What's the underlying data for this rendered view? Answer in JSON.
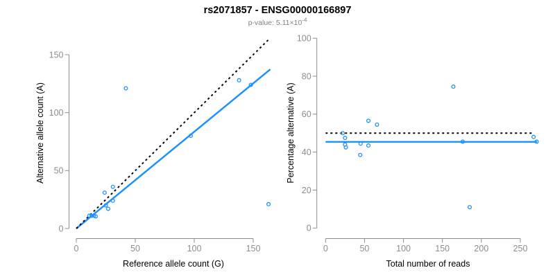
{
  "header": {
    "title": "rs2071857 - ENSG00000166897",
    "subtitle_prefix": "p-value: 5.11×10",
    "subtitle_exponent": "-4"
  },
  "colors": {
    "point": "#1E90FF",
    "fit_line": "#1E90FF",
    "reference_line": "#000000",
    "axis": "#8c8c8c",
    "tick_label": "#8c8c8c",
    "title": "#000000",
    "subtitle": "#7f7f7f"
  },
  "chart_data": [
    {
      "type": "scatter",
      "xlabel": "Reference allele count (G)",
      "ylabel": "Alternative allele count (A)",
      "xticks": [
        0,
        50,
        100,
        150
      ],
      "yticks": [
        0,
        50,
        100,
        150
      ],
      "xlim": [
        0,
        165
      ],
      "ylim": [
        0,
        165
      ],
      "points": [
        [
          11,
          11
        ],
        [
          13,
          11
        ],
        [
          15,
          11
        ],
        [
          16.5,
          10.5
        ],
        [
          24,
          31
        ],
        [
          25,
          20
        ],
        [
          27,
          17
        ],
        [
          31,
          36
        ],
        [
          31,
          24
        ],
        [
          42,
          121
        ],
        [
          97,
          80
        ],
        [
          138,
          128
        ],
        [
          148,
          124
        ],
        [
          163,
          21
        ]
      ],
      "lines": [
        {
          "name": "identity-line",
          "style": "dotted",
          "color": "#000000",
          "x1": 0,
          "y1": 0,
          "x2": 163.5,
          "y2": 163.5
        },
        {
          "name": "fit-line",
          "style": "solid",
          "color": "#1E90FF",
          "x1": 0,
          "y1": 0,
          "x2": 164.5,
          "y2": 137.4
        }
      ]
    },
    {
      "type": "scatter",
      "xlabel": "Total number of reads",
      "ylabel": "Percentage alternative (A)",
      "xticks": [
        0,
        50,
        100,
        150,
        200,
        250
      ],
      "yticks": [
        0,
        20,
        40,
        60,
        80,
        100
      ],
      "xlim": [
        0,
        272
      ],
      "ylim": [
        0,
        100
      ],
      "points": [
        [
          22,
          50
        ],
        [
          25,
          47.5
        ],
        [
          25,
          44
        ],
        [
          26,
          42.5
        ],
        [
          44.5,
          38.5
        ],
        [
          45,
          44.5
        ],
        [
          55,
          56.5
        ],
        [
          55,
          43.5
        ],
        [
          66,
          54.5
        ],
        [
          164,
          74.5
        ],
        [
          176,
          45.5
        ],
        [
          185,
          11
        ],
        [
          267,
          48
        ],
        [
          271,
          45.5
        ]
      ],
      "lines": [
        {
          "name": "expected-percentage-line",
          "style": "dotted",
          "color": "#000000",
          "x1": 0,
          "y1": 50,
          "x2": 266,
          "y2": 50
        },
        {
          "name": "fit-percentage-line",
          "style": "solid",
          "color": "#1E90FF",
          "x1": 0,
          "y1": 45.4,
          "x2": 271.6,
          "y2": 45.4
        }
      ]
    }
  ]
}
